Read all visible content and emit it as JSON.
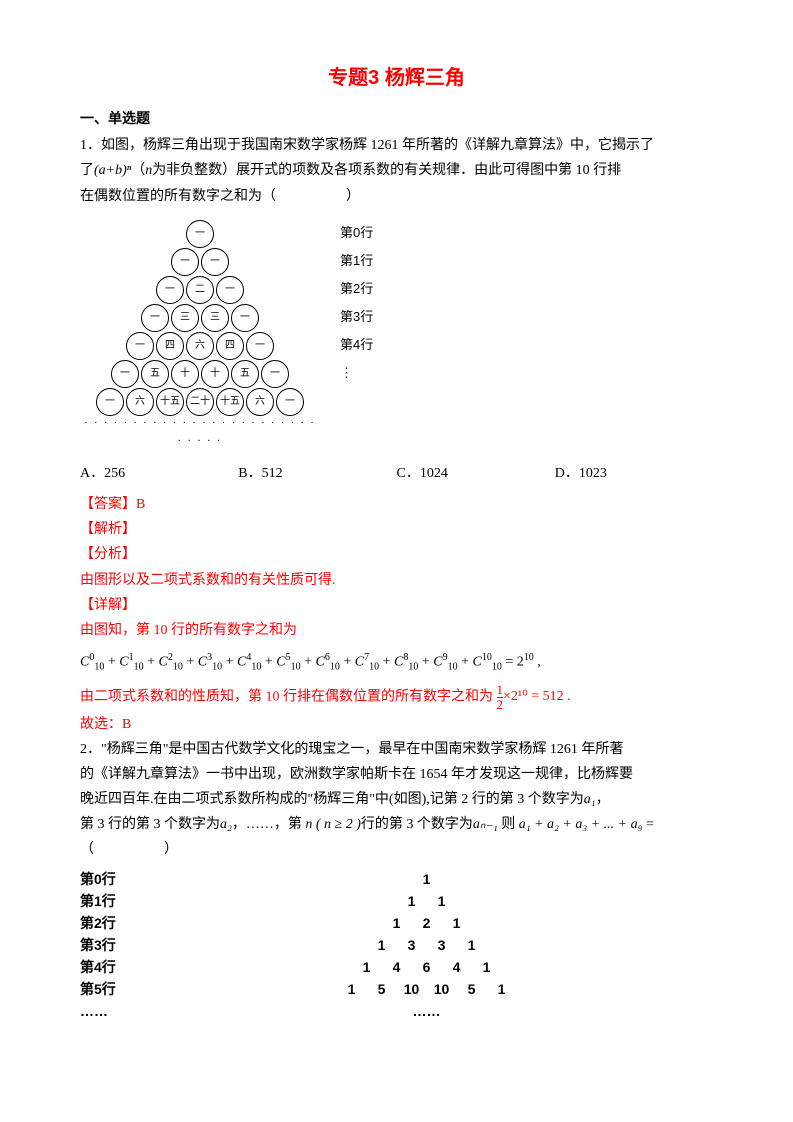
{
  "title": "专题3 杨辉三角",
  "section1": "一、单选题",
  "q1": {
    "num": "1．",
    "text1": "如图，杨辉三角出现于我国南宋数学家杨辉 1261 年所著的《详解九章算法》中，它揭示了",
    "text2_pre": "了",
    "text2_math": "(a+b)ⁿ",
    "text2_mid": "（",
    "text2_n": "n",
    "text2_post": "为非负整数）展开式的项数及各项系数的有关规律．由此可得图中第 10 行排",
    "text3": "在偶数位置的所有数字之和为（　　　　　）",
    "triangle": {
      "rows": [
        [
          "一"
        ],
        [
          "一",
          "一"
        ],
        [
          "一",
          "二",
          "一"
        ],
        [
          "一",
          "三",
          "三",
          "一"
        ],
        [
          "一",
          "四",
          "六",
          "四",
          "一"
        ],
        [
          "一",
          "五",
          "十",
          "十",
          "五",
          "一"
        ],
        [
          "一",
          "六",
          "十五",
          "二十",
          "十五",
          "六",
          "一"
        ]
      ],
      "labels": [
        "第0行",
        "第1行",
        "第2行",
        "第3行",
        "第4行"
      ]
    },
    "opts": {
      "A": "A．256",
      "B": "B．512",
      "C": "C．1024",
      "D": "D．1023"
    },
    "ans_label": "【答案】B",
    "jiexi": "【解析】",
    "fenxi": "【分析】",
    "fenxi_text": "由图形以及二项式系数和的有关性质可得.",
    "xiangjie": "【详解】",
    "xiangjie_text": "由图知，第 10 行的所有数字之和为",
    "formula": "C⁰₁₀ + C¹₁₀ + C²₁₀ + C³₁₀ + C⁴₁₀ + C⁵₁₀ + C⁶₁₀ + C⁷₁₀ + C⁸₁₀ + C⁹₁₀ + C¹⁰₁₀ = 2¹⁰ ,",
    "conclusion_pre": "由二项式系数和的性质知，第 10 行排在偶数位置的所有数字之和为",
    "frac_num": "1",
    "frac_den": "2",
    "conclusion_post": "×2¹⁰ = 512 .",
    "guxuan": "故选：B"
  },
  "q2": {
    "num": "2．",
    "text1": "\"杨辉三角\"是中国古代数学文化的瑰宝之一，最早在中国南宋数学家杨辉 1261 年所著",
    "text2": "的《详解九章算法》一书中出现，欧洲数学家帕斯卡在 1654 年才发现这一规律，比杨辉要",
    "text3_pre": "晚近四百年.在由二项式系数所构成的\"杨辉三角\"中(如图),记第 2 行的第 3 个数字为",
    "text3_a1": "a₁",
    "text3_comma": "，",
    "text4_pre": "第 3 行的第 3 个数字为",
    "text4_a2": "a₂",
    "text4_mid": "，……，第 ",
    "text4_n": "n ( n ≥ 2 )",
    "text4_mid2": "行的第 3 个数字为",
    "text4_an": "aₙ₋₁",
    "text4_mid3": " 则 ",
    "text4_sum": "a₁ + a₂ + a₃ + ... + a₉",
    "text4_eq": " =",
    "paren": "（　　　　　）",
    "tri2": {
      "rows": [
        {
          "label": "第0行",
          "nums": [
            "1"
          ]
        },
        {
          "label": "第1行",
          "nums": [
            "1",
            "1"
          ]
        },
        {
          "label": "第2行",
          "nums": [
            "1",
            "2",
            "1"
          ]
        },
        {
          "label": "第3行",
          "nums": [
            "1",
            "3",
            "3",
            "1"
          ]
        },
        {
          "label": "第4行",
          "nums": [
            "1",
            "4",
            "6",
            "4",
            "1"
          ]
        },
        {
          "label": "第5行",
          "nums": [
            "1",
            "5",
            "10",
            "10",
            "5",
            "1"
          ]
        }
      ],
      "dots": "……"
    }
  }
}
